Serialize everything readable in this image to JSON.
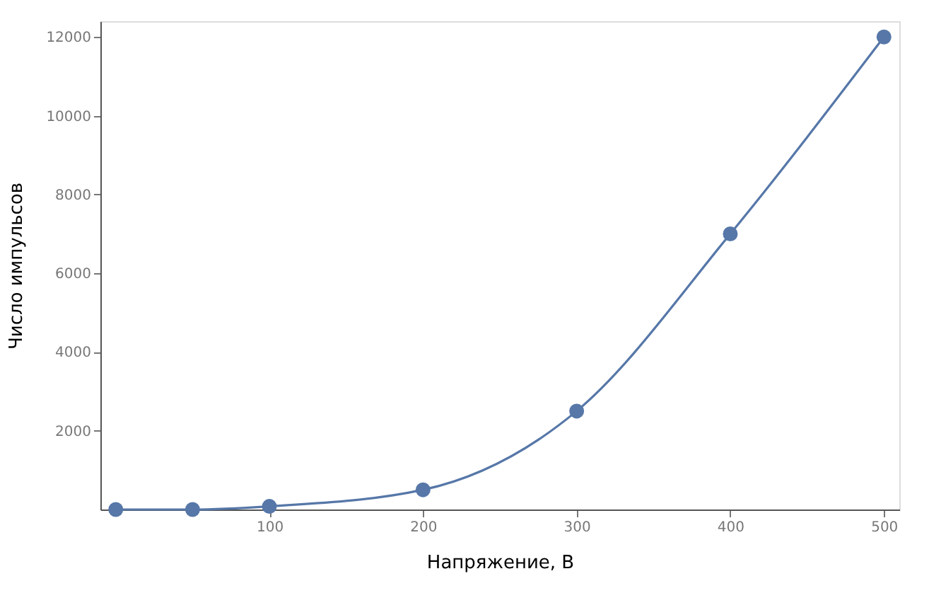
{
  "chart_data": {
    "type": "line",
    "xlabel": "Напряжение, В",
    "ylabel": "Число импульсов",
    "x": [
      0,
      50,
      100,
      200,
      300,
      400,
      500
    ],
    "series": [
      {
        "color": "#5677a8",
        "values": [
          0,
          0,
          80,
          500,
          2500,
          7000,
          12000
        ]
      }
    ],
    "xlim": [
      -10,
      510
    ],
    "ylim": [
      0,
      12400
    ],
    "xticks": [
      100,
      200,
      300,
      400,
      500
    ],
    "yticks": [
      2000,
      4000,
      6000,
      8000,
      10000,
      12000
    ],
    "marker": "circle",
    "line_style": "solid"
  }
}
